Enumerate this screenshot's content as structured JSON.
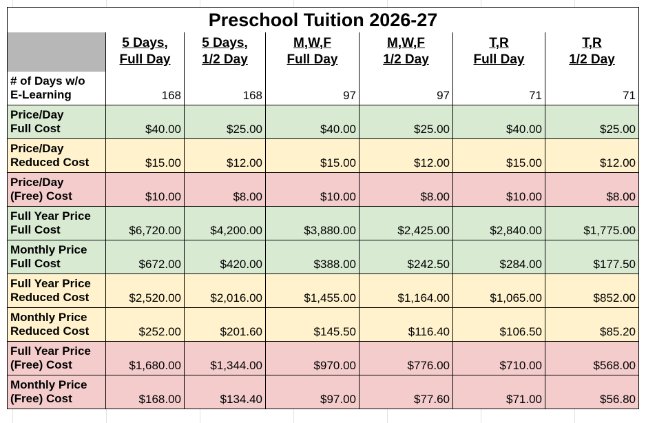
{
  "table": {
    "title": "Preschool Tuition 2026-27",
    "header_color": "#b7b7b7",
    "columns": [
      [
        "5 Days,",
        "Full Day"
      ],
      [
        "5 Days,",
        "1/2 Day"
      ],
      [
        "M,W,F",
        "Full Day"
      ],
      [
        "M,W,F",
        "1/2 Day"
      ],
      [
        "T,R",
        "Full Day"
      ],
      [
        "T,R",
        "1/2 Day"
      ]
    ],
    "rows": [
      {
        "label": [
          "# of Days w/o",
          "E-Learning"
        ],
        "color": "#ffffff",
        "values": [
          "168",
          "168",
          "97",
          "97",
          "71",
          "71"
        ]
      },
      {
        "label": [
          "Price/Day",
          "Full Cost"
        ],
        "color": "#d9ead3",
        "values": [
          "$40.00",
          "$25.00",
          "$40.00",
          "$25.00",
          "$40.00",
          "$25.00"
        ]
      },
      {
        "label": [
          "Price/Day",
          "Reduced Cost"
        ],
        "color": "#fff2cc",
        "values": [
          "$15.00",
          "$12.00",
          "$15.00",
          "$12.00",
          "$15.00",
          "$12.00"
        ]
      },
      {
        "label": [
          "Price/Day",
          "(Free) Cost"
        ],
        "color": "#f4cccc",
        "values": [
          "$10.00",
          "$8.00",
          "$10.00",
          "$8.00",
          "$10.00",
          "$8.00"
        ]
      },
      {
        "label": [
          "Full Year Price",
          "Full Cost"
        ],
        "color": "#d9ead3",
        "values": [
          "$6,720.00",
          "$4,200.00",
          "$3,880.00",
          "$2,425.00",
          "$2,840.00",
          "$1,775.00"
        ]
      },
      {
        "label": [
          "Monthly Price",
          "Full Cost"
        ],
        "color": "#d9ead3",
        "values": [
          "$672.00",
          "$420.00",
          "$388.00",
          "$242.50",
          "$284.00",
          "$177.50"
        ]
      },
      {
        "label": [
          "Full Year Price",
          "Reduced Cost"
        ],
        "color": "#fff2cc",
        "values": [
          "$2,520.00",
          "$2,016.00",
          "$1,455.00",
          "$1,164.00",
          "$1,065.00",
          "$852.00"
        ]
      },
      {
        "label": [
          "Monthly Price",
          "Reduced Cost"
        ],
        "color": "#fff2cc",
        "values": [
          "$252.00",
          "$201.60",
          "$145.50",
          "$116.40",
          "$106.50",
          "$85.20"
        ]
      },
      {
        "label": [
          "Full Year Price",
          "(Free) Cost"
        ],
        "color": "#f4cccc",
        "values": [
          "$1,680.00",
          "$1,344.00",
          "$970.00",
          "$776.00",
          "$710.00",
          "$568.00"
        ]
      },
      {
        "label": [
          "Monthly Price",
          "(Free) Cost"
        ],
        "color": "#f4cccc",
        "values": [
          "$168.00",
          "$134.40",
          "$97.00",
          "$77.60",
          "$71.00",
          "$56.80"
        ]
      }
    ]
  }
}
